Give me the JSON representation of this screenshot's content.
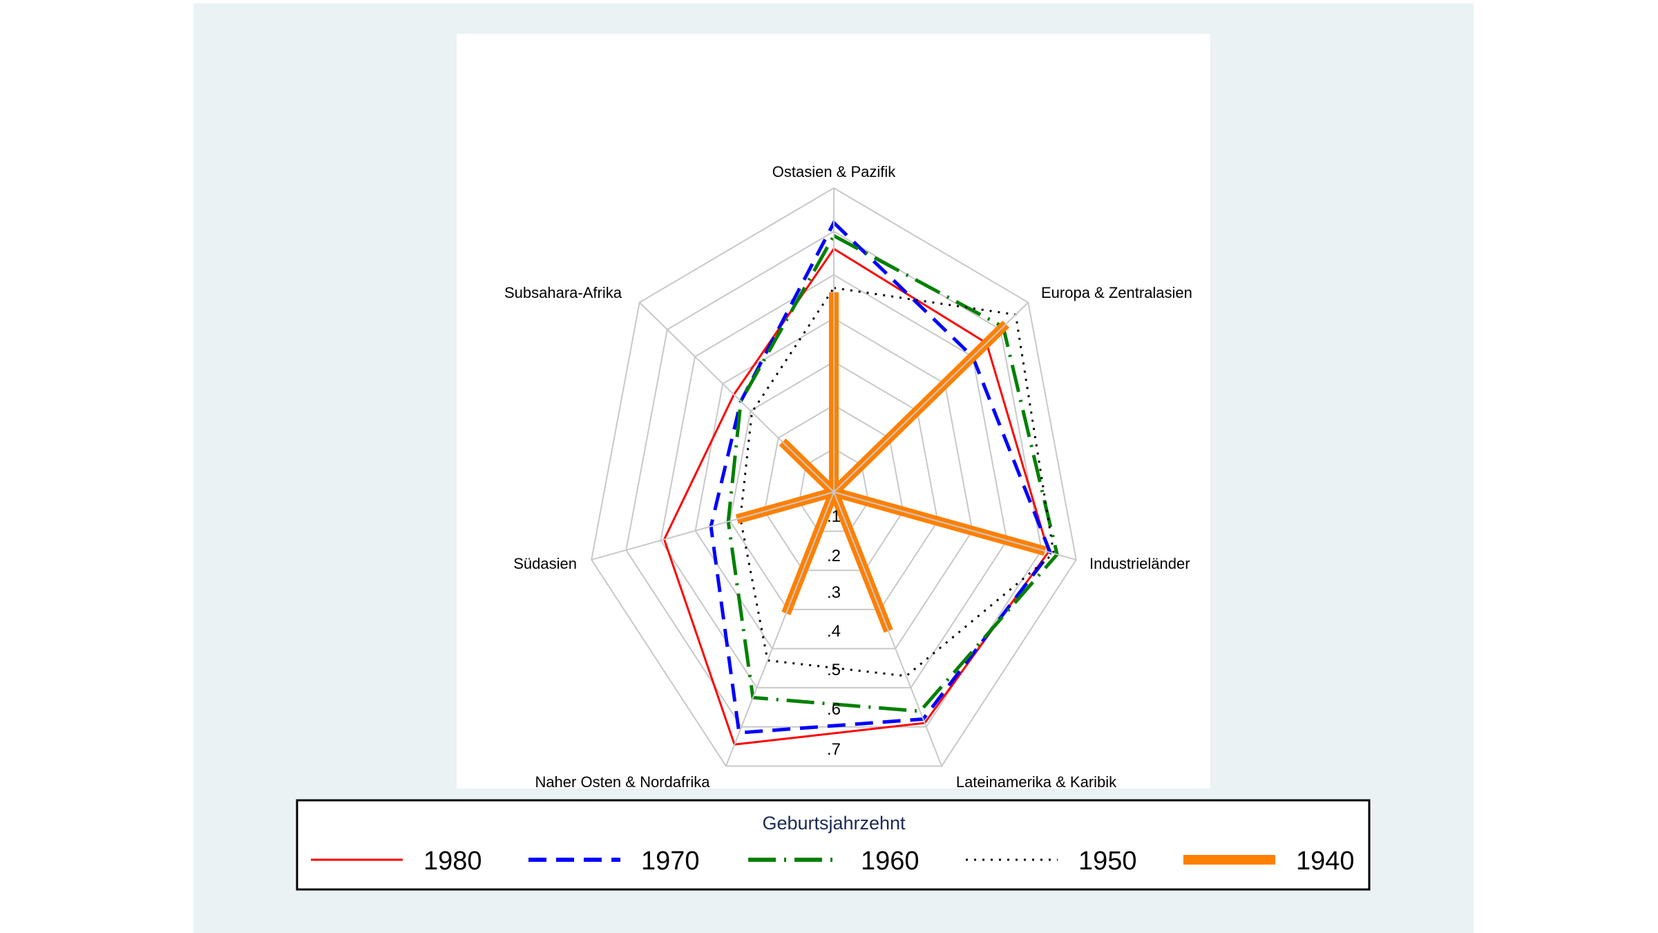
{
  "chart_data": {
    "type": "radar",
    "axes": [
      "Ostasien & Pazifik",
      "Europa & Zentralasien",
      "Industrieländer",
      "Lateinamerika & Karibik",
      "Naher Osten & Nordafrika",
      "Südasien",
      "Subsahara-Afrika"
    ],
    "rlim": [
      0,
      0.7
    ],
    "ticks": [
      0.1,
      0.2,
      0.3,
      0.4,
      0.5,
      0.6,
      0.7
    ],
    "tick_labels": [
      ".1",
      ".2",
      ".3",
      ".4",
      ".5",
      ".6",
      ".7"
    ],
    "grid": true,
    "legend": {
      "title": "Geburtsjahrzehnt",
      "placement": "bottom"
    },
    "series": [
      {
        "name": "1980",
        "color": "#ff0000",
        "style": "solid",
        "values": [
          0.56,
          0.55,
          0.62,
          0.59,
          0.645,
          0.49,
          0.36
        ]
      },
      {
        "name": "1970",
        "color": "#0000ff",
        "style": "dash",
        "values": [
          0.62,
          0.5,
          0.625,
          0.58,
          0.615,
          0.355,
          0.335
        ]
      },
      {
        "name": "1960",
        "color": "#008000",
        "style": "dash-dot",
        "values": [
          0.59,
          0.61,
          0.645,
          0.56,
          0.525,
          0.305,
          0.335
        ]
      },
      {
        "name": "1950",
        "color": "#000000",
        "style": "dot",
        "values": [
          0.47,
          0.655,
          0.635,
          0.47,
          0.43,
          0.27,
          0.295
        ]
      },
      {
        "name": "1940",
        "color": "#ff8000",
        "style": "thick-spokes",
        "values": [
          0.46,
          0.62,
          0.61,
          0.355,
          0.31,
          0.28,
          0.185
        ]
      }
    ]
  },
  "colors": {
    "panel_background": "#eaf2f3",
    "plot_background": "#ffffff",
    "grid": "#c8c8c8"
  }
}
